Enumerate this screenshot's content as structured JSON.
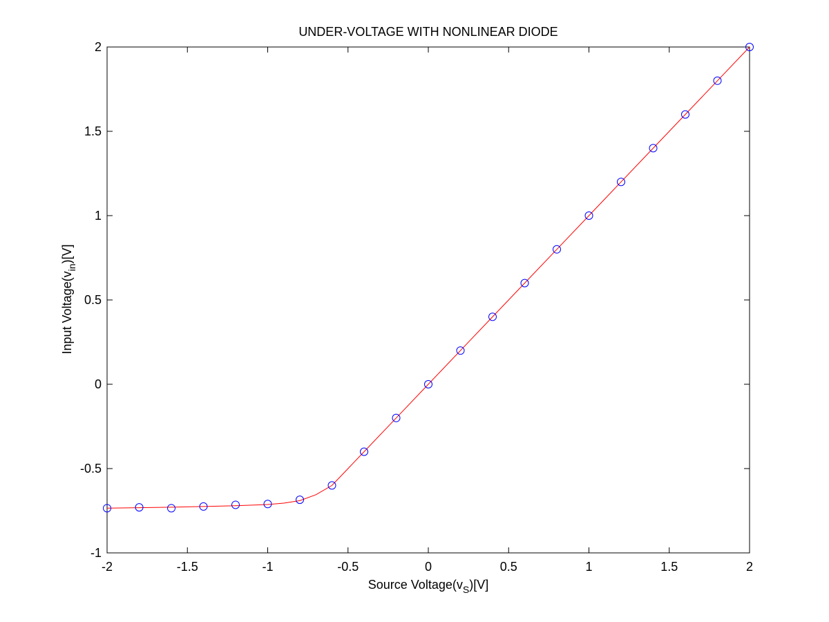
{
  "chart_data": {
    "type": "line",
    "title": "UNDER-VOLTAGE WITH NONLINEAR DIODE",
    "xlabel": {
      "main": "Source Voltage(v",
      "sub": "S",
      "tail": ")[V]"
    },
    "ylabel": {
      "main": "Input Voltage(v",
      "sub": "in",
      "tail": ")[V]"
    },
    "xlim": [
      -2,
      2
    ],
    "ylim": [
      -1,
      2
    ],
    "grid": true,
    "x_ticks": [
      {
        "value": -2,
        "label": "-2"
      },
      {
        "value": -1.5,
        "label": "-1.5"
      },
      {
        "value": -1,
        "label": "-1"
      },
      {
        "value": -0.5,
        "label": "-0.5"
      },
      {
        "value": 0,
        "label": "0"
      },
      {
        "value": 0.5,
        "label": "0.5"
      },
      {
        "value": 1,
        "label": "1"
      },
      {
        "value": 1.5,
        "label": "1.5"
      },
      {
        "value": 2,
        "label": "2"
      }
    ],
    "y_ticks": [
      {
        "value": -1,
        "label": "-1"
      },
      {
        "value": -0.5,
        "label": "-0.5"
      },
      {
        "value": 0,
        "label": "0"
      },
      {
        "value": 0.5,
        "label": "0.5"
      },
      {
        "value": 1,
        "label": "1"
      },
      {
        "value": 1.5,
        "label": "1.5"
      },
      {
        "value": 2,
        "label": "2"
      }
    ],
    "series": [
      {
        "style": "line",
        "color": "#ff0000",
        "x": [
          -2,
          -1.8,
          -1.6,
          -1.4,
          -1.2,
          -1.0,
          -0.9,
          -0.8,
          -0.7,
          -0.6,
          -0.5,
          -0.4,
          -0.2,
          0,
          0.2,
          0.4,
          0.6,
          0.8,
          1.0,
          1.2,
          1.4,
          1.6,
          1.8,
          2.0
        ],
        "y": [
          -0.735,
          -0.732,
          -0.729,
          -0.725,
          -0.72,
          -0.713,
          -0.705,
          -0.69,
          -0.655,
          -0.6,
          -0.5,
          -0.4,
          -0.2,
          0,
          0.2,
          0.4,
          0.6,
          0.8,
          1.0,
          1.2,
          1.4,
          1.6,
          1.8,
          2.0
        ]
      },
      {
        "style": "markers",
        "marker": "circle",
        "color": "#0000ff",
        "x": [
          -2,
          -1.8,
          -1.6,
          -1.4,
          -1.2,
          -1.0,
          -0.8,
          -0.6,
          -0.4,
          -0.2,
          0,
          0.2,
          0.4,
          0.6,
          0.8,
          1.0,
          1.2,
          1.4,
          1.6,
          1.8,
          2.0
        ],
        "y": [
          -0.735,
          -0.73,
          -0.735,
          -0.725,
          -0.715,
          -0.71,
          -0.685,
          -0.6,
          -0.4,
          -0.2,
          0,
          0.2,
          0.4,
          0.6,
          0.8,
          1.0,
          1.2,
          1.4,
          1.6,
          1.8,
          2.0
        ]
      }
    ]
  }
}
